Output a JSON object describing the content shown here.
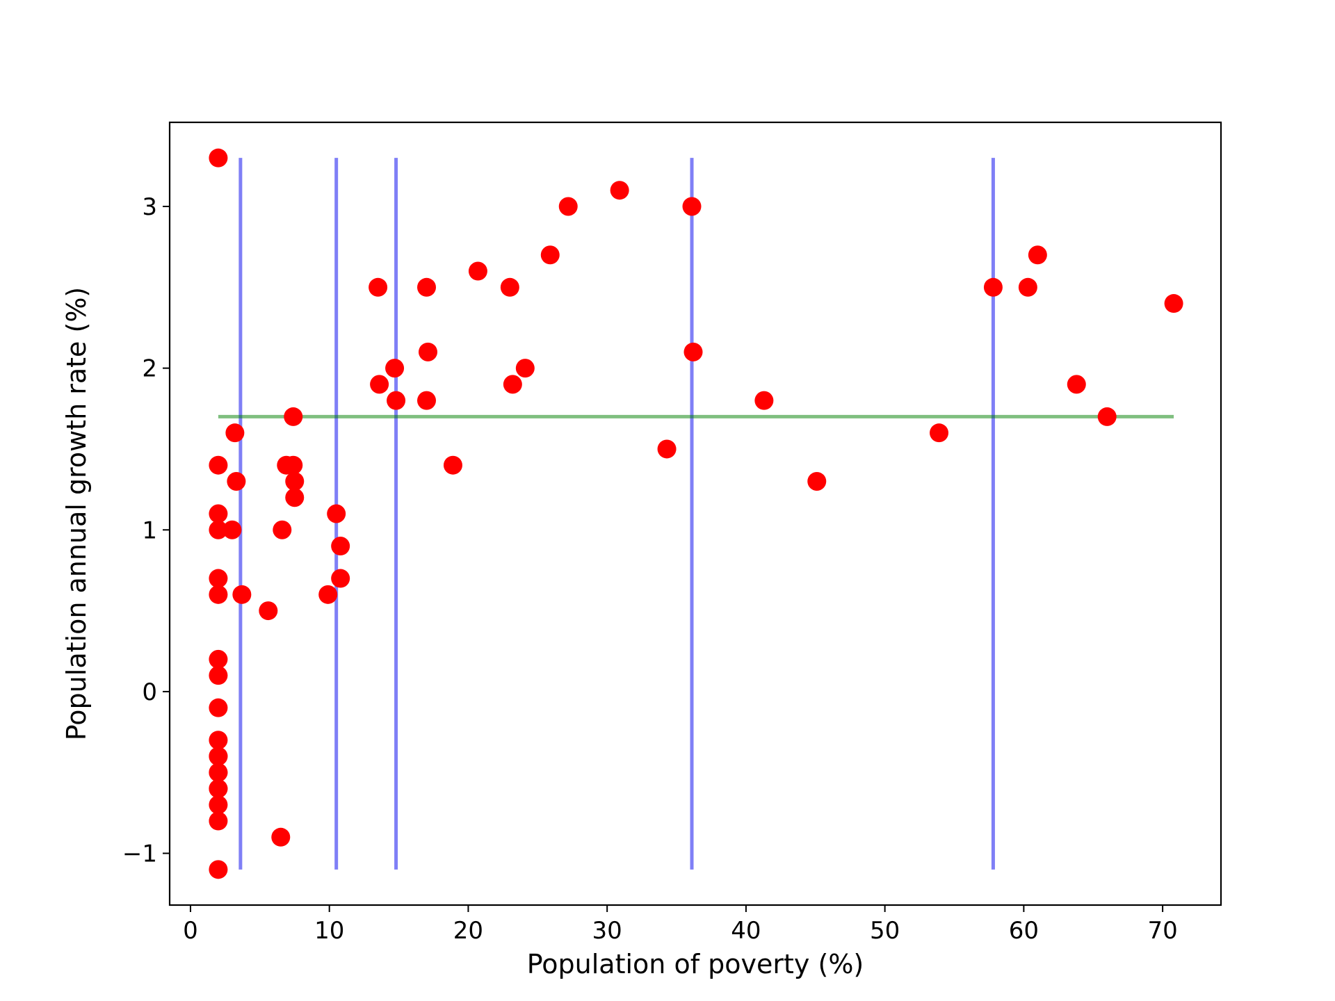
{
  "chart_data": {
    "type": "scatter",
    "title": "",
    "xlabel": "Population of poverty (%)",
    "ylabel": "Population annual growth rate (%)",
    "xlim": [
      -1.5,
      74.2
    ],
    "ylim": [
      -1.32,
      3.52
    ],
    "xticks": [
      0,
      10,
      20,
      30,
      40,
      50,
      60,
      70
    ],
    "yticks": [
      -1,
      0,
      1,
      2,
      3
    ],
    "xtick_labels": [
      "0",
      "10",
      "20",
      "30",
      "40",
      "50",
      "60",
      "70"
    ],
    "ytick_labels": [
      "−1",
      "0",
      "1",
      "2",
      "3"
    ],
    "grid": false,
    "legend": "none",
    "colors": {
      "points": "#ff0000",
      "vertical_lines": "#0000ee",
      "horizontal_line": "#008000",
      "frame": "#000000"
    },
    "series": [
      {
        "kind": "points",
        "x": [
          2,
          2,
          2,
          2,
          2,
          2,
          2,
          2,
          2,
          2,
          2,
          2,
          2,
          2,
          2,
          2,
          2,
          2,
          2,
          3.2,
          3.3,
          3,
          3.7,
          5.6,
          6.5,
          6.6,
          6.9,
          7.4,
          7.4,
          7.5,
          7.5,
          9.9,
          10.5,
          10.8,
          10.8,
          13.5,
          13.6,
          14.7,
          14.8,
          17,
          17,
          17.1,
          18.9,
          20.7,
          23,
          23.2,
          24.1,
          25.9,
          27.2,
          30.9,
          34.3,
          36.1,
          36.2,
          41.3,
          45.1,
          53.9,
          57.8,
          60.3,
          61,
          63.8,
          66,
          70.8
        ],
        "y": [
          3.3,
          1.4,
          1.1,
          1.0,
          0.7,
          0.6,
          0.2,
          0.1,
          -0.1,
          -0.3,
          -0.4,
          -0.5,
          -0.6,
          -0.7,
          -0.8,
          -1.1,
          -0.6,
          -0.5,
          -0.4,
          1.6,
          1.3,
          1.0,
          0.6,
          0.5,
          -0.9,
          1.0,
          1.4,
          1.7,
          1.4,
          1.3,
          1.2,
          0.6,
          1.1,
          0.9,
          0.7,
          2.5,
          1.9,
          2.0,
          1.8,
          2.5,
          1.8,
          2.1,
          1.4,
          2.6,
          2.5,
          1.9,
          2.0,
          2.7,
          3.0,
          3.1,
          1.5,
          3.0,
          2.1,
          1.8,
          1.3,
          1.6,
          2.5,
          2.5,
          2.7,
          1.9,
          1.7,
          2.4
        ]
      },
      {
        "kind": "vertical_lines",
        "x": [
          3.6,
          10.5,
          14.8,
          36.1,
          57.8
        ],
        "y_from": -1.1,
        "y_to": 3.3
      },
      {
        "kind": "horizontal_line",
        "y": 1.7,
        "x_from": 2,
        "x_to": 70.8
      }
    ]
  }
}
